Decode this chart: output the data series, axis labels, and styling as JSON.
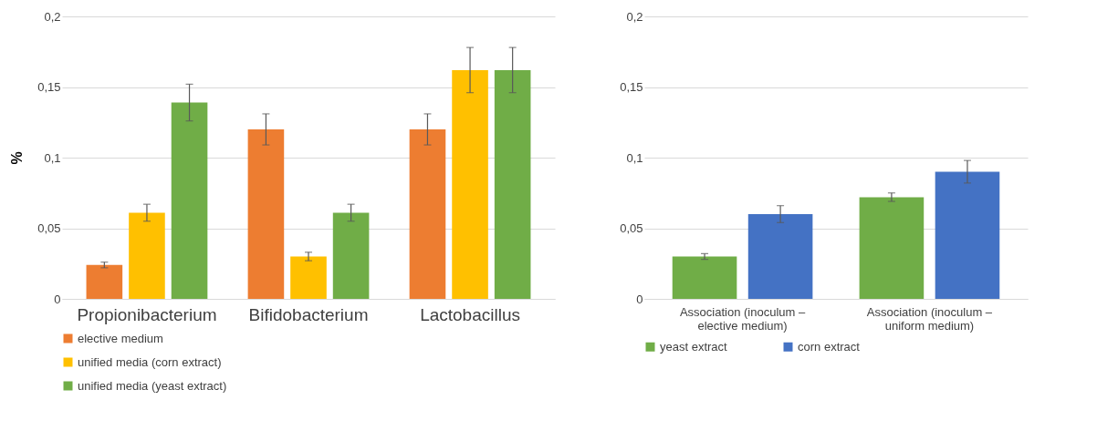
{
  "chart_data": [
    {
      "type": "bar",
      "ylabel": "%",
      "categories": [
        "Propionibacterium",
        "Bifidobacterium",
        "Lactobacillus"
      ],
      "series": [
        {
          "name": "elective medium",
          "color": "#ed7d31",
          "values": [
            0.024,
            0.12,
            0.12
          ],
          "errors": [
            0.002,
            0.011,
            0.011
          ]
        },
        {
          "name": "unified media (corn extract)",
          "color": "#ffc000",
          "values": [
            0.061,
            0.03,
            0.162
          ],
          "errors": [
            0.006,
            0.003,
            0.016
          ]
        },
        {
          "name": "unified media (yeast extract)",
          "color": "#70ad47",
          "values": [
            0.139,
            0.061,
            0.162
          ],
          "errors": [
            0.013,
            0.006,
            0.016
          ]
        }
      ],
      "ylim": [
        0,
        0.2
      ],
      "yticks": [
        {
          "value": 0,
          "label": "0"
        },
        {
          "value": 0.05,
          "label": "0,05"
        },
        {
          "value": 0.1,
          "label": "0,1"
        },
        {
          "value": 0.15,
          "label": "0,15"
        },
        {
          "value": 0.2,
          "label": "0,2"
        }
      ],
      "grid": "y",
      "legend": "bottom"
    },
    {
      "type": "bar",
      "categories": [
        "Association (inoculum – elective medium)",
        "Association (inoculum – uniform medium)"
      ],
      "series": [
        {
          "name": "yeast extract",
          "color": "#70ad47",
          "values": [
            0.03,
            0.072
          ],
          "errors": [
            0.002,
            0.003
          ]
        },
        {
          "name": "corn extract",
          "color": "#4472c4",
          "values": [
            0.06,
            0.09
          ],
          "errors": [
            0.006,
            0.008
          ]
        }
      ],
      "ylim": [
        0,
        0.2
      ],
      "yticks": [
        {
          "value": 0,
          "label": "0"
        },
        {
          "value": 0.05,
          "label": "0,05"
        },
        {
          "value": 0.1,
          "label": "0,1"
        },
        {
          "value": 0.15,
          "label": "0,15"
        },
        {
          "value": 0.2,
          "label": "0,2"
        }
      ],
      "grid": "y",
      "legend": "bottom"
    }
  ]
}
